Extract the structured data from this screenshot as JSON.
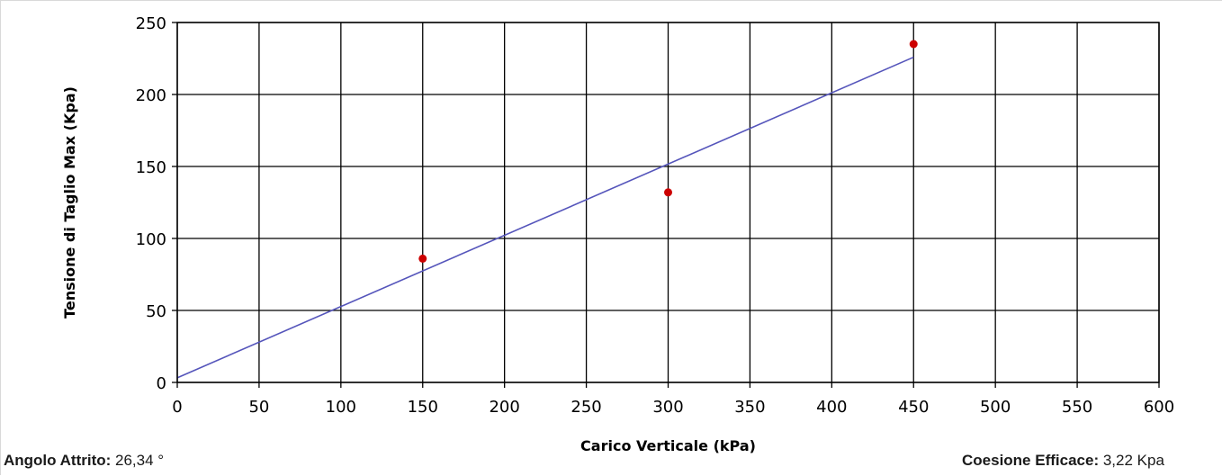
{
  "chart_data": {
    "type": "scatter",
    "xlabel": "Carico Verticale (kPa)",
    "ylabel": "Tensione di Taglio Max (Kpa)",
    "xlim": [
      0,
      600
    ],
    "ylim": [
      0,
      250
    ],
    "xticks": [
      0,
      50,
      100,
      150,
      200,
      250,
      300,
      350,
      400,
      450,
      500,
      550,
      600
    ],
    "yticks": [
      0,
      50,
      100,
      150,
      200,
      250
    ],
    "grid": true,
    "series": [
      {
        "kind": "points",
        "color": "#cc0000",
        "x": [
          150,
          300,
          450
        ],
        "y": [
          86,
          132,
          235
        ]
      },
      {
        "kind": "line",
        "color": "#5555bb",
        "x": [
          0,
          450
        ],
        "y": [
          3.22,
          225.9
        ]
      }
    ]
  },
  "stats": {
    "friction_label": "Angolo Attrito:",
    "friction_value": "26,34 °",
    "cohesion_label": "Coesione Efficace:",
    "cohesion_value": "3,22 Kpa"
  }
}
